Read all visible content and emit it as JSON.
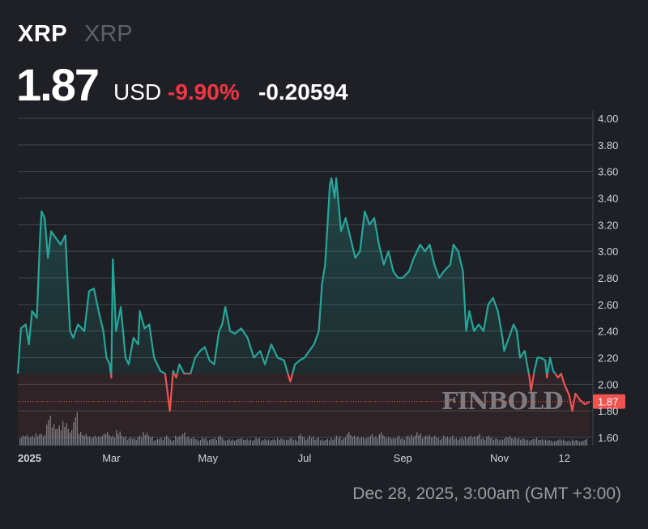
{
  "header": {
    "symbol": "XRP",
    "name": "XRP",
    "price": "1.87",
    "currency": "USD",
    "change_pct": "-9.90%",
    "change_abs": "-0.20594"
  },
  "footer": {
    "timestamp": "Dec 28, 2025, 3:00am (GMT +3:00)"
  },
  "watermark": "FINBOLD",
  "colors": {
    "up": "#26a69a",
    "down": "#ef5350",
    "background": "#1e2025",
    "grid": "#43464d",
    "negative_text": "#f23645"
  },
  "chart_data": {
    "type": "line",
    "title": "",
    "xlabel": "",
    "ylabel": "",
    "ylim": [
      1.6,
      4.0
    ],
    "yticks": [
      "4.00",
      "3.80",
      "3.60",
      "3.40",
      "3.20",
      "3.00",
      "2.80",
      "2.60",
      "2.40",
      "2.20",
      "2.00",
      "1.80",
      "1.60"
    ],
    "xticks": [
      {
        "date": "2025-01-01",
        "label": "2025"
      },
      {
        "date": "2025-03-01",
        "label": "Mar"
      },
      {
        "date": "2025-05-01",
        "label": "May"
      },
      {
        "date": "2025-07-01",
        "label": "Jul"
      },
      {
        "date": "2025-09-01",
        "label": "Sep"
      },
      {
        "date": "2025-11-01",
        "label": "Nov"
      },
      {
        "date": "2025-12-12",
        "label": "12"
      }
    ],
    "xrange": [
      "2025-01-01",
      "2025-12-28"
    ],
    "grid": true,
    "last_value_label": "1.87",
    "color_threshold": 2.08,
    "series": [
      {
        "x": [
          "2025-01-01",
          "2025-01-03",
          "2025-01-06",
          "2025-01-08",
          "2025-01-10",
          "2025-01-13",
          "2025-01-15",
          "2025-01-16",
          "2025-01-18",
          "2025-01-20",
          "2025-01-22",
          "2025-01-25",
          "2025-01-28",
          "2025-01-31",
          "2025-02-03",
          "2025-02-05",
          "2025-02-08",
          "2025-02-12",
          "2025-02-15",
          "2025-02-18",
          "2025-02-21",
          "2025-02-24",
          "2025-02-26",
          "2025-02-28",
          "2025-03-01",
          "2025-03-02",
          "2025-03-04",
          "2025-03-07",
          "2025-03-10",
          "2025-03-12",
          "2025-03-15",
          "2025-03-18",
          "2025-03-19",
          "2025-03-22",
          "2025-03-25",
          "2025-03-28",
          "2025-04-01",
          "2025-04-04",
          "2025-04-07",
          "2025-04-09",
          "2025-04-11",
          "2025-04-13",
          "2025-04-16",
          "2025-04-20",
          "2025-04-23",
          "2025-04-26",
          "2025-04-29",
          "2025-05-02",
          "2025-05-05",
          "2025-05-08",
          "2025-05-10",
          "2025-05-12",
          "2025-05-15",
          "2025-05-18",
          "2025-05-22",
          "2025-05-26",
          "2025-05-30",
          "2025-06-03",
          "2025-06-06",
          "2025-06-10",
          "2025-06-14",
          "2025-06-18",
          "2025-06-22",
          "2025-06-25",
          "2025-06-28",
          "2025-07-01",
          "2025-07-04",
          "2025-07-07",
          "2025-07-10",
          "2025-07-12",
          "2025-07-14",
          "2025-07-17",
          "2025-07-18",
          "2025-07-20",
          "2025-07-21",
          "2025-07-24",
          "2025-07-27",
          "2025-07-30",
          "2025-08-02",
          "2025-08-05",
          "2025-08-08",
          "2025-08-11",
          "2025-08-14",
          "2025-08-17",
          "2025-08-20",
          "2025-08-23",
          "2025-08-26",
          "2025-08-29",
          "2025-09-01",
          "2025-09-05",
          "2025-09-08",
          "2025-09-12",
          "2025-09-15",
          "2025-09-18",
          "2025-09-21",
          "2025-09-24",
          "2025-09-27",
          "2025-10-01",
          "2025-10-03",
          "2025-10-06",
          "2025-10-09",
          "2025-10-11",
          "2025-10-13",
          "2025-10-16",
          "2025-10-19",
          "2025-10-22",
          "2025-10-25",
          "2025-10-28",
          "2025-10-31",
          "2025-11-03",
          "2025-11-04",
          "2025-11-07",
          "2025-11-10",
          "2025-11-12",
          "2025-11-14",
          "2025-11-17",
          "2025-11-20",
          "2025-11-21",
          "2025-11-23",
          "2025-11-25",
          "2025-11-27",
          "2025-11-30",
          "2025-12-01",
          "2025-12-03",
          "2025-12-05",
          "2025-12-08",
          "2025-12-10",
          "2025-12-12",
          "2025-12-15",
          "2025-12-17",
          "2025-12-19",
          "2025-12-22",
          "2025-12-25",
          "2025-12-28"
        ],
        "y": [
          2.08,
          2.42,
          2.45,
          2.3,
          2.55,
          2.5,
          3.1,
          3.3,
          3.25,
          2.95,
          3.15,
          3.1,
          3.05,
          3.12,
          2.4,
          2.35,
          2.45,
          2.4,
          2.7,
          2.72,
          2.55,
          2.4,
          2.2,
          2.15,
          2.05,
          2.94,
          2.4,
          2.58,
          2.2,
          2.15,
          2.35,
          2.3,
          2.55,
          2.42,
          2.45,
          2.2,
          2.1,
          2.08,
          1.8,
          2.1,
          2.05,
          2.15,
          2.08,
          2.08,
          2.2,
          2.25,
          2.28,
          2.18,
          2.15,
          2.4,
          2.45,
          2.58,
          2.4,
          2.38,
          2.42,
          2.35,
          2.2,
          2.25,
          2.15,
          2.3,
          2.2,
          2.18,
          2.02,
          2.15,
          2.18,
          2.2,
          2.25,
          2.3,
          2.4,
          2.75,
          2.9,
          3.5,
          3.55,
          3.4,
          3.55,
          3.15,
          3.25,
          3.1,
          2.95,
          3.0,
          3.3,
          3.2,
          3.25,
          3.05,
          2.9,
          3.0,
          2.85,
          2.8,
          2.8,
          2.85,
          2.95,
          3.05,
          3.0,
          3.05,
          2.9,
          2.8,
          2.85,
          2.9,
          3.05,
          3.0,
          2.85,
          2.4,
          2.55,
          2.4,
          2.45,
          2.4,
          2.6,
          2.65,
          2.55,
          2.35,
          2.25,
          2.35,
          2.45,
          2.4,
          2.2,
          2.25,
          2.05,
          1.95,
          2.1,
          2.2,
          2.2,
          2.18,
          2.05,
          2.2,
          2.1,
          2.05,
          2.08,
          2.0,
          1.92,
          1.8,
          1.93,
          1.88,
          1.85,
          1.87
        ]
      }
    ],
    "volume_relative": [
      0.3,
      0.35,
      0.3,
      0.4,
      0.35,
      0.9,
      0.7,
      0.6,
      0.8,
      0.5,
      1.0,
      0.45,
      0.35,
      0.3,
      0.3,
      0.35,
      0.45,
      0.3,
      0.5,
      0.3,
      0.25,
      0.25,
      0.3,
      0.45,
      0.3,
      0.2,
      0.25,
      0.3,
      0.2,
      0.3,
      0.4,
      0.3,
      0.25,
      0.2,
      0.25,
      0.2,
      0.25,
      0.3,
      0.2,
      0.2,
      0.2,
      0.25,
      0.2,
      0.2,
      0.25,
      0.2,
      0.2,
      0.2,
      0.25,
      0.2,
      0.25,
      0.2,
      0.35,
      0.25,
      0.3,
      0.25,
      0.2,
      0.2,
      0.25,
      0.3,
      0.25,
      0.45,
      0.3,
      0.3,
      0.25,
      0.35,
      0.3,
      0.4,
      0.3,
      0.25,
      0.3,
      0.25,
      0.3,
      0.35,
      0.4,
      0.3,
      0.35,
      0.3,
      0.25,
      0.3,
      0.3,
      0.25,
      0.25,
      0.3,
      0.3,
      0.35,
      0.25,
      0.3,
      0.25,
      0.2,
      0.25,
      0.3,
      0.25,
      0.25,
      0.2,
      0.2,
      0.25,
      0.2,
      0.2,
      0.15,
      0.2,
      0.2,
      0.15,
      0.2,
      0.15,
      0.2
    ]
  }
}
